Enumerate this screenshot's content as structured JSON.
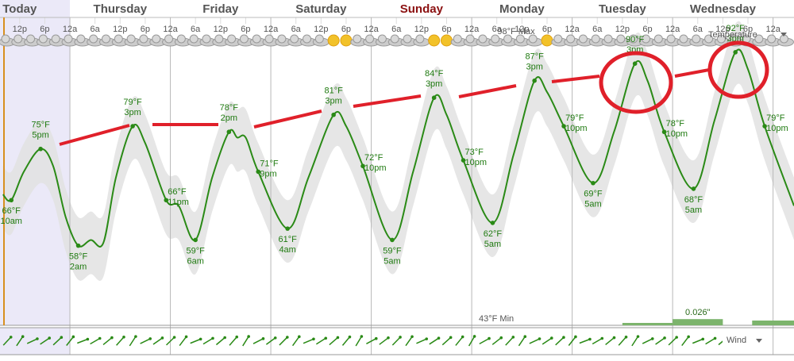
{
  "chart_data": {
    "type": "line",
    "days": [
      "Today",
      "Thursday",
      "Friday",
      "Saturday",
      "Sunday",
      "Monday",
      "Tuesday",
      "Wednesday"
    ],
    "day_label_colors": [
      "#555555",
      "#555555",
      "#555555",
      "#555555",
      "#8b1010",
      "#555555",
      "#555555",
      "#555555"
    ],
    "xlim": [
      7.3,
      197
    ],
    "xticks": [
      {
        "value": 12,
        "label": "12p"
      },
      {
        "value": 18,
        "label": "6p"
      },
      {
        "value": 24,
        "label": "12a"
      },
      {
        "value": 30,
        "label": "6a"
      },
      {
        "value": 36,
        "label": "12p"
      },
      {
        "value": 42,
        "label": "6p"
      },
      {
        "value": 48,
        "label": "12a"
      },
      {
        "value": 54,
        "label": "6a"
      },
      {
        "value": 60,
        "label": "12p"
      },
      {
        "value": 66,
        "label": "6p"
      },
      {
        "value": 72,
        "label": "12a"
      },
      {
        "value": 78,
        "label": "6a"
      },
      {
        "value": 84,
        "label": "12p"
      },
      {
        "value": 90,
        "label": "6p"
      },
      {
        "value": 96,
        "label": "12a"
      },
      {
        "value": 102,
        "label": "6a"
      },
      {
        "value": 108,
        "label": "12p"
      },
      {
        "value": 114,
        "label": "6p"
      },
      {
        "value": 120,
        "label": "12a"
      },
      {
        "value": 126,
        "label": "6a"
      },
      {
        "value": 132,
        "label": "12p"
      },
      {
        "value": 138,
        "label": "6p"
      },
      {
        "value": 144,
        "label": "12a"
      },
      {
        "value": 150,
        "label": "6a"
      },
      {
        "value": 156,
        "label": "12p"
      },
      {
        "value": 162,
        "label": "6p"
      },
      {
        "value": 168,
        "label": "12a"
      },
      {
        "value": 174,
        "label": "6a"
      },
      {
        "value": 180,
        "label": "12p"
      },
      {
        "value": 186,
        "label": "6p"
      },
      {
        "value": 192,
        "label": "12a"
      }
    ],
    "ylim": [
      44,
      97
    ],
    "x": [
      8,
      10,
      13,
      17,
      20,
      23,
      26,
      29,
      32,
      35,
      39,
      42,
      47,
      50,
      54,
      58,
      62,
      64,
      66,
      69,
      76,
      81,
      87,
      90,
      94,
      101,
      106,
      111,
      114,
      118,
      125,
      130,
      135,
      138,
      142,
      149,
      154,
      159,
      162,
      166,
      173,
      178,
      183,
      186,
      190,
      197
    ],
    "series": [
      {
        "color": "#2a8a16",
        "values": [
          67,
          66,
          71,
          75,
          72,
          63,
          58,
          59,
          58.5,
          70,
          79,
          76,
          66,
          65,
          59,
          70,
          78,
          77,
          77,
          71,
          61,
          70,
          81,
          79,
          72,
          59,
          71,
          84,
          81,
          73,
          62,
          74,
          87,
          85,
          79,
          69,
          78,
          90,
          87,
          78,
          68,
          80,
          92,
          89,
          79,
          65
        ],
        "value_labels": [
          null,
          "66°F",
          null,
          "75°F",
          null,
          null,
          "58°F",
          null,
          null,
          null,
          "79°F",
          null,
          "66°F",
          null,
          "59°F",
          null,
          "78°F",
          null,
          null,
          "71°F",
          "61°F",
          null,
          "81°F",
          null,
          "72°F",
          "59°F",
          null,
          "84°F",
          null,
          "73°F",
          "62°F",
          null,
          "87°F",
          null,
          "79°F",
          "69°F",
          null,
          "90°F",
          null,
          "78°F",
          "68°F",
          null,
          "92°F",
          null,
          "79°F",
          null
        ],
        "time_labels": [
          null,
          "10am",
          null,
          "5pm",
          null,
          null,
          "2am",
          null,
          null,
          null,
          "3pm",
          null,
          "11pm",
          null,
          "6am",
          null,
          "2pm",
          null,
          null,
          "9pm",
          "4am",
          null,
          "3pm",
          null,
          "10pm",
          "5am",
          null,
          "3pm",
          null,
          "10pm",
          "5am",
          null,
          "3pm",
          null,
          "10pm",
          "5am",
          null,
          "3pm",
          null,
          "10pm",
          "5am",
          null,
          "3pm",
          null,
          "10pm",
          null
        ]
      }
    ],
    "band": {
      "color": "#e2e2e2",
      "high": [
        72,
        71,
        76,
        80,
        77,
        68,
        63,
        64,
        63.5,
        75,
        84,
        81,
        71,
        70,
        64,
        75,
        83,
        82,
        82,
        76,
        66,
        75,
        86,
        84,
        77,
        64,
        76,
        89,
        86,
        78,
        67,
        79,
        92,
        90,
        84,
        74,
        83,
        95,
        92,
        83,
        73,
        85,
        97,
        94,
        84,
        70
      ],
      "low": [
        61,
        60,
        65,
        69,
        66,
        57,
        52,
        53,
        52.5,
        64,
        73,
        70,
        60,
        59,
        53,
        64,
        72,
        71,
        71,
        65,
        55,
        64,
        75,
        73,
        66,
        53,
        65,
        78,
        75,
        67,
        56,
        68,
        81,
        79,
        73,
        63,
        72,
        84,
        81,
        72,
        62,
        74,
        86,
        83,
        73,
        59
      ]
    },
    "precipitation": {
      "color": "#7cb46c",
      "x_start": [
        156,
        168,
        187
      ],
      "x_end": [
        168,
        180,
        197
      ],
      "values": [
        0.01,
        0.026,
        0.02
      ],
      "value_labels": [
        null,
        "0.026\"",
        null
      ],
      "ylim": [
        0,
        0.1
      ]
    },
    "annotations": {
      "max": "98°F Max",
      "min": "43°F Min"
    },
    "legend": {
      "temperature": "Temperature",
      "wind": "Wind"
    }
  }
}
